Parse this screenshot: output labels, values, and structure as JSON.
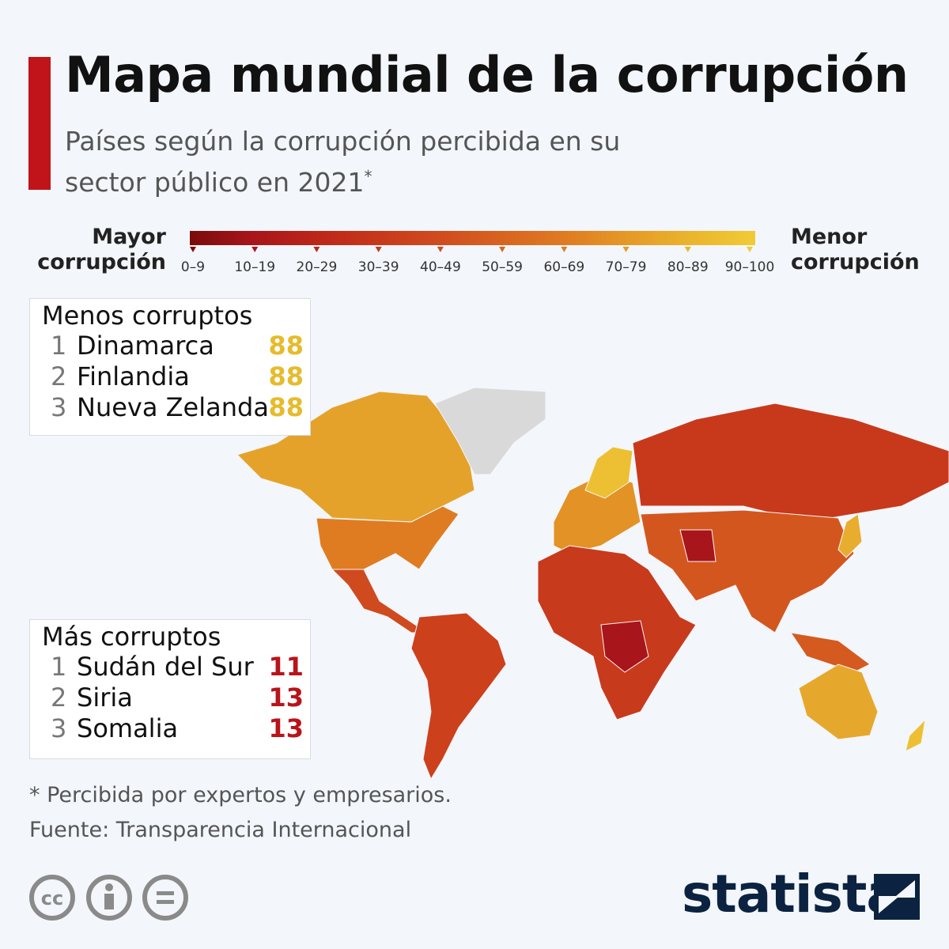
{
  "header": {
    "title": "Mapa mundial de la corrupción",
    "subtitle": "Países según la corrupción percibida en su sector público en 2021",
    "subtitle_mark": "*"
  },
  "legend": {
    "left_label": "Mayor corrupción",
    "right_label": "Menor corrupción",
    "ranges": [
      "0–9",
      "10–19",
      "20–29",
      "30–39",
      "40–49",
      "50–59",
      "60–69",
      "70–79",
      "80–89",
      "90–100"
    ],
    "colors": [
      "#7a0c0c",
      "#a8151a",
      "#bb2619",
      "#c7381b",
      "#d04c1e",
      "#d86420",
      "#df7c22",
      "#e59a27",
      "#ebb52d",
      "#f0cb35"
    ]
  },
  "least_corrupt": {
    "title": "Menos corruptos",
    "color": "#e6bb2c",
    "rows": [
      {
        "rank": "1",
        "name": "Dinamarca",
        "score": "88"
      },
      {
        "rank": "2",
        "name": "Finlandia",
        "score": "88"
      },
      {
        "rank": "3",
        "name": "Nueva Zelanda",
        "score": "88"
      }
    ]
  },
  "most_corrupt": {
    "title": "Más corruptos",
    "color": "#b8141a",
    "rows": [
      {
        "rank": "1",
        "name": "Sudán del Sur",
        "score": "11"
      },
      {
        "rank": "2",
        "name": "Siria",
        "score": "13"
      },
      {
        "rank": "3",
        "name": "Somalia",
        "score": "13"
      }
    ]
  },
  "footnote": "* Percibida por expertos y empresarios.",
  "source": "Fuente: Transparencia Internacional",
  "brand": "statista"
}
